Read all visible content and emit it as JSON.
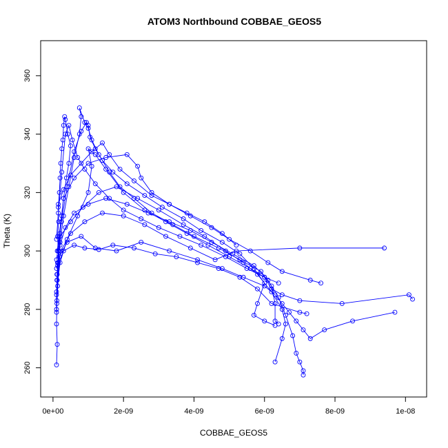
{
  "chart_data": {
    "type": "scatter",
    "title": "ATOM3 Northbound COBBAE_GEOS5",
    "xlabel": "COBBAE_GEOS5",
    "ylabel": "Theta (K)",
    "xlim": [
      -3.5e-10,
      1.06e-08
    ],
    "ylim": [
      250,
      372
    ],
    "x_ticks": [
      0,
      2e-09,
      4e-09,
      6e-09,
      8e-09,
      1e-08
    ],
    "x_tick_labels": [
      "0e+00",
      "2e-09",
      "4e-09",
      "6e-09",
      "8e-09",
      "1e-08"
    ],
    "y_ticks": [
      260,
      280,
      300,
      320,
      340,
      360
    ],
    "y_tick_labels": [
      "260",
      "280",
      "300",
      "320",
      "340",
      "360"
    ],
    "series_color": "#0000ff",
    "grid": false,
    "legend": "none",
    "series": [
      {
        "marker": "open-circle",
        "connected": true,
        "points": [
          [
            1e-10,
            261
          ],
          [
            1.2e-10,
            268
          ],
          [
            1e-10,
            275
          ],
          [
            1.1e-10,
            282
          ],
          [
            1.3e-10,
            288
          ],
          [
            1.2e-10,
            292
          ],
          [
            1.4e-10,
            296
          ],
          [
            1.5e-10,
            300
          ],
          [
            1.3e-10,
            305
          ],
          [
            1.6e-10,
            310
          ],
          [
            1.5e-10,
            315
          ],
          [
            1.8e-10,
            320
          ],
          [
            2e-10,
            325
          ],
          [
            2.2e-10,
            330
          ],
          [
            2.5e-10,
            335
          ],
          [
            2.8e-10,
            338
          ],
          [
            3e-10,
            343
          ],
          [
            3.3e-10,
            346
          ],
          [
            3.5e-10,
            345
          ],
          [
            4.2e-10,
            340
          ],
          [
            5e-10,
            336
          ],
          [
            4.5e-10,
            330
          ],
          [
            3.8e-10,
            325
          ],
          [
            3e-10,
            318
          ],
          [
            2.5e-10,
            312
          ],
          [
            2e-10,
            306
          ],
          [
            1.6e-10,
            300
          ],
          [
            1.3e-10,
            296
          ],
          [
            1.1e-10,
            290
          ],
          [
            1e-10,
            285
          ],
          [
            1e-10,
            280
          ]
        ]
      },
      {
        "marker": "open-circle",
        "connected": true,
        "points": [
          [
            1.2e-10,
            290
          ],
          [
            1.5e-10,
            296
          ],
          [
            2e-10,
            303
          ],
          [
            3e-10,
            312
          ],
          [
            4.5e-10,
            322
          ],
          [
            6e-10,
            332
          ],
          [
            7.5e-10,
            340
          ],
          [
            8e-10,
            346
          ],
          [
            7.5e-10,
            349
          ],
          [
            9e-10,
            344
          ],
          [
            1e-09,
            342
          ],
          [
            1.1e-09,
            338
          ],
          [
            1.3e-09,
            333
          ],
          [
            1.6e-09,
            327
          ],
          [
            1.9e-09,
            322
          ],
          [
            2.3e-09,
            318
          ],
          [
            2.8e-09,
            313
          ],
          [
            3.4e-09,
            309
          ],
          [
            4e-09,
            305
          ],
          [
            4.7e-09,
            301
          ],
          [
            5.3e-09,
            297
          ],
          [
            5.9e-09,
            293
          ],
          [
            6.2e-09,
            288
          ],
          [
            6.3e-09,
            282
          ],
          [
            6.3e-09,
            276
          ],
          [
            6.4e-09,
            275
          ]
        ]
      },
      {
        "marker": "open-circle",
        "connected": true,
        "points": [
          [
            1e-10,
            286
          ],
          [
            2e-10,
            296
          ],
          [
            4e-10,
            304
          ],
          [
            7e-10,
            312
          ],
          [
            1e-09,
            320
          ],
          [
            1.1e-09,
            329
          ],
          [
            1e-09,
            335
          ],
          [
            1.2e-09,
            333
          ],
          [
            1.5e-09,
            328
          ],
          [
            2e-09,
            320
          ],
          [
            2.6e-09,
            314
          ],
          [
            3.2e-09,
            310
          ],
          [
            3.8e-09,
            306
          ],
          [
            4.4e-09,
            302
          ],
          [
            5e-09,
            298
          ],
          [
            5.6e-09,
            294
          ],
          [
            6e-09,
            291
          ],
          [
            6.2e-09,
            287
          ],
          [
            6.5e-09,
            285
          ],
          [
            7e-09,
            283
          ],
          [
            8.2e-09,
            282
          ],
          [
            1.01e-08,
            285
          ],
          [
            1.02e-08,
            283.5
          ]
        ]
      },
      {
        "marker": "open-circle",
        "connected": true,
        "points": [
          [
            1.1e-10,
            292
          ],
          [
            2.2e-10,
            300
          ],
          [
            5e-10,
            306
          ],
          [
            9e-10,
            310
          ],
          [
            1.4e-09,
            313
          ],
          [
            2e-09,
            312
          ],
          [
            2.6e-09,
            309
          ],
          [
            3.2e-09,
            305
          ],
          [
            3.9e-09,
            301
          ],
          [
            4.6e-09,
            297
          ],
          [
            5.2e-09,
            300
          ],
          [
            7e-09,
            301
          ],
          [
            9.4e-09,
            301
          ]
        ]
      },
      {
        "marker": "open-circle",
        "connected": true,
        "points": [
          [
            1e-10,
            279
          ],
          [
            1.8e-10,
            298
          ],
          [
            4e-10,
            303
          ],
          [
            8e-10,
            305
          ],
          [
            1.2e-09,
            301
          ],
          [
            1.8e-09,
            300
          ],
          [
            2.5e-09,
            303
          ],
          [
            3.3e-09,
            300
          ],
          [
            4.1e-09,
            297
          ],
          [
            4.8e-09,
            294
          ],
          [
            5.4e-09,
            291
          ],
          [
            6e-09,
            288
          ],
          [
            6.3e-09,
            285
          ],
          [
            6.5e-09,
            282
          ],
          [
            6.7e-09,
            279
          ],
          [
            6.9e-09,
            276
          ],
          [
            7.1e-09,
            273
          ],
          [
            7.3e-09,
            270
          ],
          [
            7.7e-09,
            273
          ],
          [
            8.5e-09,
            276
          ],
          [
            9.7e-09,
            279
          ]
        ]
      },
      {
        "marker": "open-circle",
        "connected": true,
        "points": [
          [
            1e-10,
            294
          ],
          [
            2e-10,
            302
          ],
          [
            3.5e-10,
            308
          ],
          [
            6e-10,
            313
          ],
          [
            1e-09,
            316
          ],
          [
            1.5e-09,
            318
          ],
          [
            2.1e-09,
            316
          ],
          [
            2.7e-09,
            313
          ],
          [
            3.3e-09,
            310
          ],
          [
            3.9e-09,
            307
          ],
          [
            4.5e-09,
            303
          ],
          [
            5.1e-09,
            299
          ],
          [
            5.7e-09,
            295
          ],
          [
            6.1e-09,
            290
          ],
          [
            6.4e-09,
            284
          ],
          [
            6.6e-09,
            278
          ],
          [
            6.8e-09,
            271
          ],
          [
            6.9e-09,
            265
          ],
          [
            7e-09,
            262
          ],
          [
            7.1e-09,
            259
          ],
          [
            7.1e-09,
            257.5
          ]
        ]
      },
      {
        "marker": "open-circle",
        "connected": true,
        "points": [
          [
            1.2e-10,
            300
          ],
          [
            3e-10,
            318
          ],
          [
            6e-10,
            325
          ],
          [
            1e-09,
            330
          ],
          [
            1.5e-09,
            332
          ],
          [
            2.1e-09,
            333
          ],
          [
            2.4e-09,
            329
          ],
          [
            2.5e-09,
            325
          ],
          [
            2.8e-09,
            320
          ],
          [
            3.3e-09,
            316
          ],
          [
            3.9e-09,
            312
          ],
          [
            4.5e-09,
            308
          ],
          [
            5e-09,
            304
          ],
          [
            5.6e-09,
            300
          ],
          [
            6.1e-09,
            296
          ],
          [
            6.5e-09,
            293
          ],
          [
            7.3e-09,
            290
          ],
          [
            7.6e-09,
            289
          ]
        ]
      },
      {
        "marker": "open-circle",
        "connected": true,
        "points": [
          [
            1.1e-10,
            283
          ],
          [
            2e-10,
            305
          ],
          [
            5e-10,
            310
          ],
          [
            8.5e-10,
            315
          ],
          [
            1.3e-09,
            320
          ],
          [
            1.8e-09,
            322
          ],
          [
            2.4e-09,
            318
          ],
          [
            3e-09,
            314
          ],
          [
            3.7e-09,
            309
          ],
          [
            4.3e-09,
            305
          ],
          [
            4.9e-09,
            300
          ],
          [
            5.4e-09,
            296
          ],
          [
            5.8e-09,
            292
          ],
          [
            6.2e-09,
            286
          ],
          [
            6.5e-09,
            280
          ],
          [
            6.6e-09,
            275
          ],
          [
            6.5e-09,
            270
          ],
          [
            6.3e-09,
            262
          ]
        ]
      },
      {
        "marker": "open-circle",
        "connected": true,
        "points": [
          [
            1e-10,
            297
          ],
          [
            2.4e-10,
            310
          ],
          [
            4e-10,
            322
          ],
          [
            6e-10,
            334
          ],
          [
            8e-10,
            341
          ],
          [
            9.5e-10,
            344
          ],
          [
            1e-09,
            343
          ],
          [
            1.05e-09,
            339
          ],
          [
            1.2e-09,
            335
          ],
          [
            1.4e-09,
            331
          ],
          [
            1.7e-09,
            327
          ],
          [
            2.1e-09,
            323
          ],
          [
            2.6e-09,
            319
          ],
          [
            3.1e-09,
            315
          ],
          [
            3.7e-09,
            311
          ],
          [
            4.2e-09,
            307
          ],
          [
            4.8e-09,
            303
          ],
          [
            5.3e-09,
            299
          ],
          [
            5.7e-09,
            294
          ],
          [
            6e-09,
            289
          ],
          [
            5.8e-09,
            282
          ],
          [
            5.7e-09,
            278
          ],
          [
            6e-09,
            276
          ],
          [
            6.3e-09,
            274.5
          ]
        ]
      },
      {
        "marker": "open-circle",
        "connected": true,
        "points": [
          [
            1.3e-10,
            295
          ],
          [
            3e-10,
            300
          ],
          [
            6e-10,
            302
          ],
          [
            9e-10,
            301
          ],
          [
            1.3e-09,
            300.5
          ],
          [
            1.7e-09,
            302
          ],
          [
            2.3e-09,
            301
          ],
          [
            2.9e-09,
            299
          ],
          [
            3.5e-09,
            298
          ],
          [
            4.1e-09,
            296
          ],
          [
            4.7e-09,
            294
          ],
          [
            5.3e-09,
            291
          ],
          [
            5.8e-09,
            287
          ],
          [
            6.2e-09,
            282
          ],
          [
            7e-09,
            279
          ],
          [
            7.2e-09,
            278.5
          ]
        ]
      },
      {
        "marker": "open-circle",
        "connected": true,
        "points": [
          [
            1e-10,
            304
          ],
          [
            1.5e-10,
            313
          ],
          [
            2.5e-10,
            327
          ],
          [
            3.5e-10,
            340
          ],
          [
            4.5e-10,
            343
          ],
          [
            5.5e-10,
            338
          ],
          [
            7e-10,
            332
          ],
          [
            9e-10,
            328
          ],
          [
            1.2e-09,
            323
          ],
          [
            1.6e-09,
            318
          ],
          [
            2e-09,
            314
          ],
          [
            2.5e-09,
            311
          ],
          [
            3e-09,
            308
          ],
          [
            3.6e-09,
            305
          ],
          [
            4.2e-09,
            302
          ],
          [
            4.9e-09,
            298
          ],
          [
            5.5e-09,
            294
          ],
          [
            6e-09,
            291
          ],
          [
            6.4e-09,
            289
          ]
        ]
      },
      {
        "marker": "open-circle",
        "connected": true,
        "points": [
          [
            1.5e-10,
            316
          ],
          [
            3e-10,
            321
          ],
          [
            5e-10,
            326
          ],
          [
            8e-10,
            330
          ],
          [
            1.1e-09,
            334
          ],
          [
            1.4e-09,
            337
          ],
          [
            1.6e-09,
            333
          ],
          [
            1.9e-09,
            328
          ],
          [
            2.3e-09,
            324
          ],
          [
            2.8e-09,
            319
          ],
          [
            3.3e-09,
            316
          ],
          [
            3.8e-09,
            313
          ],
          [
            4.3e-09,
            310
          ],
          [
            4.8e-09,
            306
          ],
          [
            5.2e-09,
            302
          ]
        ]
      }
    ]
  }
}
